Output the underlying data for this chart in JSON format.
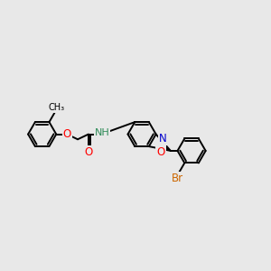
{
  "background_color": "#e8e8e8",
  "bond_color": "#000000",
  "atom_colors": {
    "O": "#ff0000",
    "N": "#0000cd",
    "H": "#2e8b57",
    "Br": "#cc6600"
  },
  "bond_width": 1.4,
  "figsize": [
    3.0,
    3.0
  ],
  "dpi": 100,
  "xlim": [
    -1.0,
    9.5
  ],
  "ylim": [
    1.5,
    7.5
  ]
}
